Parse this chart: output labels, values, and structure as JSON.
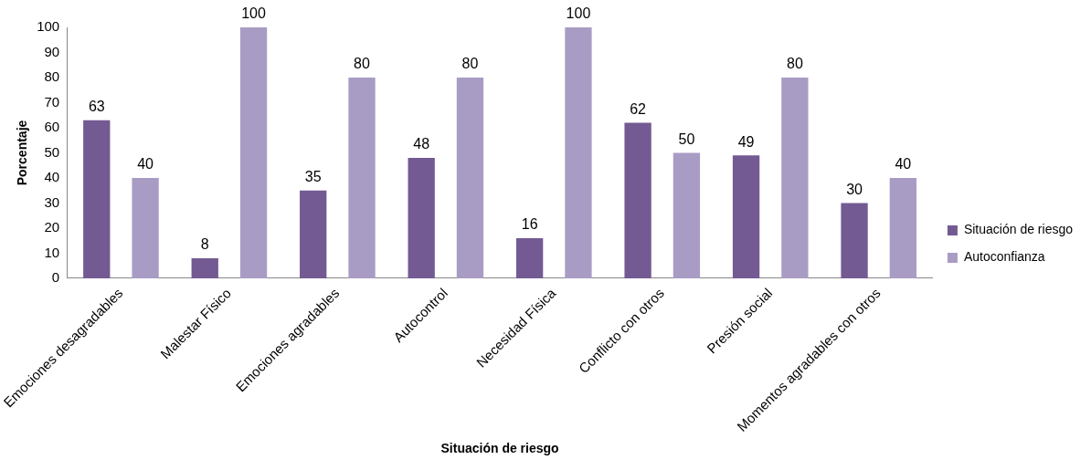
{
  "chart_data": {
    "type": "bar",
    "xlabel": "Situación de riesgo",
    "ylabel": "Porcentaje",
    "categories": [
      "Emociones desagradables",
      "Malestar Físico",
      "Emociones agradables",
      "Autocontrol",
      "Necesidad Física",
      "Conflicto con otros",
      "Presión social",
      "Momentos agradables con otros"
    ],
    "series": [
      {
        "name": "Situación de riesgo",
        "color": "#735a92",
        "values": [
          63,
          8,
          35,
          48,
          16,
          62,
          49,
          30
        ]
      },
      {
        "name": "Autoconfianza",
        "color": "#a99cc4",
        "values": [
          40,
          100,
          80,
          80,
          100,
          50,
          80,
          40
        ]
      }
    ],
    "ylim": [
      0,
      100
    ],
    "yticks": [
      0,
      10,
      20,
      30,
      40,
      50,
      60,
      70,
      80,
      90,
      100
    ],
    "grid": false,
    "legend": "right",
    "data_labels": true
  }
}
